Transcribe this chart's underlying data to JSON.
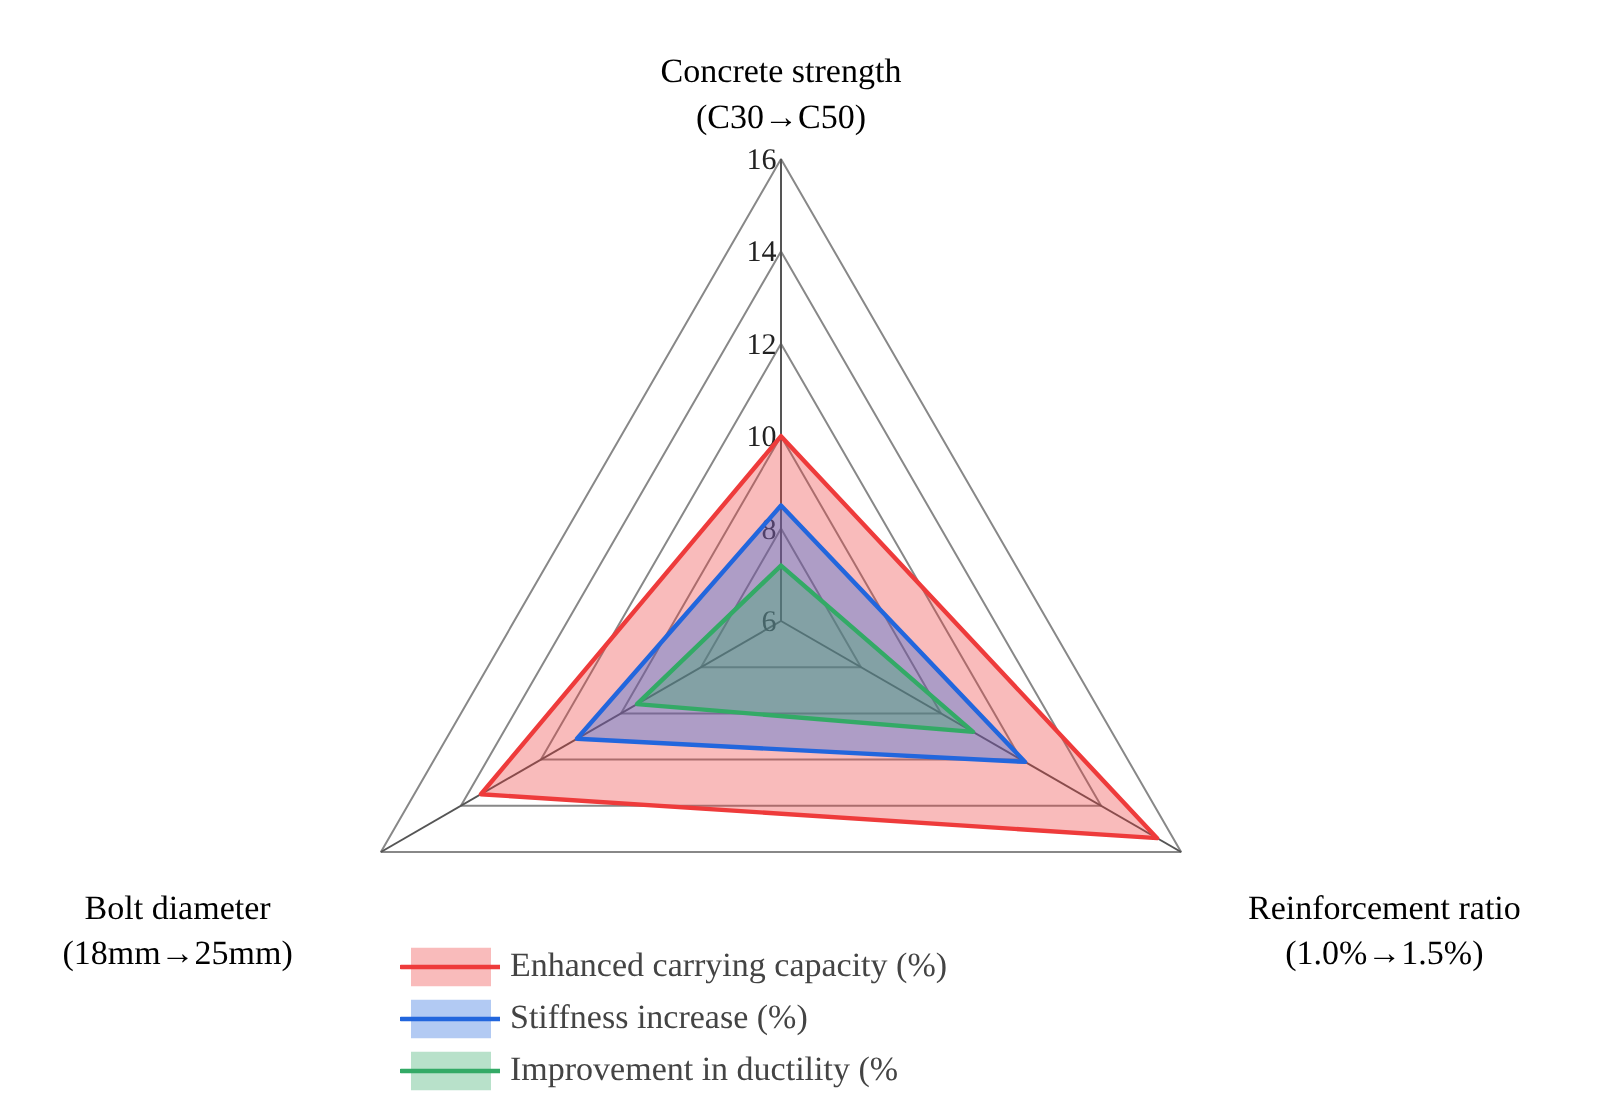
{
  "chart_data": {
    "type": "radar",
    "categories": [
      "Concrete strength\n(C30→C50)",
      "Reinforcement ratio\n(1.0%→1.5%)",
      "Bolt diameter\n(18mm→25mm)"
    ],
    "series": [
      {
        "name": "Enhanced carrying capacity (%)",
        "color": "#ee3b3b",
        "values": [
          10,
          15.4,
          13.5
        ]
      },
      {
        "name": "Stiffness increase (%)",
        "color": "#2266dd",
        "values": [
          8.5,
          12.1,
          11.1
        ]
      },
      {
        "name": "Improvement in ductility (%",
        "color": "#33aa66",
        "values": [
          7.2,
          10.8,
          9.6
        ]
      }
    ],
    "ylim": [
      6,
      16
    ],
    "yticks": [
      6,
      8,
      10,
      12,
      14,
      16
    ],
    "grid": true,
    "legend": "bottom"
  }
}
